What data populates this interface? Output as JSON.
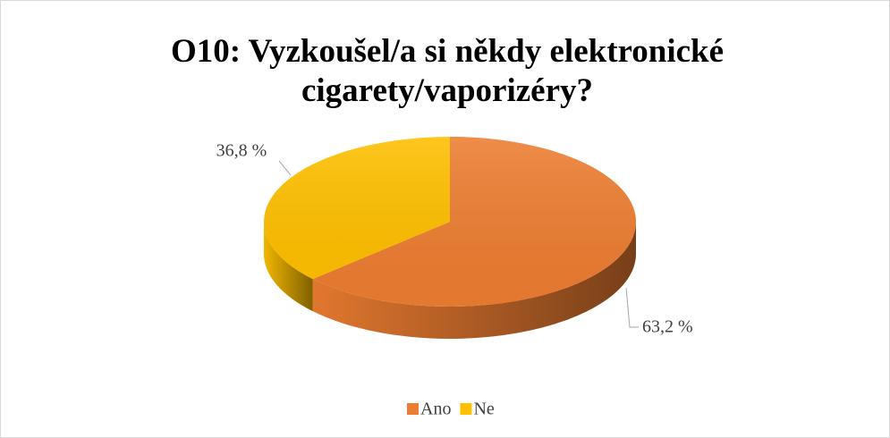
{
  "chart_data": {
    "type": "pie",
    "title": "O10: Vyzkoušel/a si někdy elektronické cigarety/vaporizéry?",
    "categories": [
      "Ano",
      "Ne"
    ],
    "values": [
      63.2,
      36.8
    ],
    "value_labels": [
      "63,2 %",
      "36,8 %"
    ],
    "colors": [
      "#ED7D31",
      "#FFC000"
    ],
    "legend": "bottom"
  }
}
